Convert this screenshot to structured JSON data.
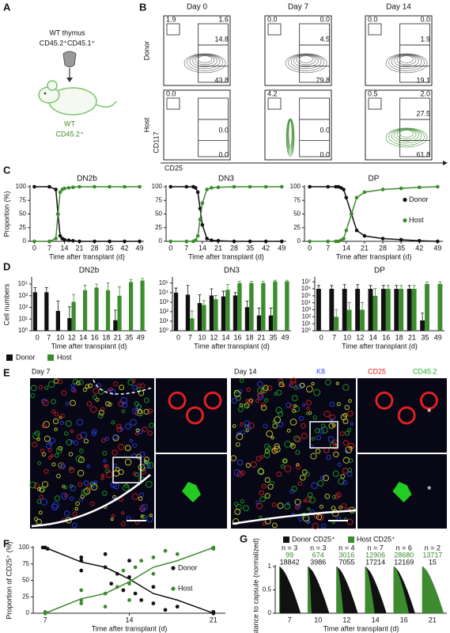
{
  "panel_a": {
    "letter": "A",
    "donor_lines": [
      "WT thymus",
      "CD45.2⁺CD45.1⁺"
    ],
    "recipient_lines": [
      "WT",
      "CD45.2⁺"
    ]
  },
  "panel_b": {
    "letter": "B",
    "columns": [
      "Day 0",
      "Day 7",
      "Day 14"
    ],
    "rows": [
      "Donor",
      "Host"
    ],
    "y_label": "CD117",
    "x_label": "CD25",
    "gates": [
      [
        [
          "1.9",
          "1.6",
          "14.8",
          "43.8"
        ],
        [
          "0.0",
          "0.0",
          "4.5",
          "79.8"
        ],
        [
          "0.0",
          "0.0",
          "1.9",
          "19.1"
        ]
      ],
      [
        [
          "0.0",
          "0.0",
          "0.0"
        ],
        [
          "4.2",
          "0.0",
          "0.0"
        ],
        [
          "0.5",
          "2.0",
          "27.5",
          "61.8"
        ]
      ]
    ]
  },
  "panel_e": {
    "letter": "E",
    "left_title": "Day 7",
    "right_title": "Day 14",
    "channels": [
      {
        "text": "K8",
        "color": "#3344ee"
      },
      {
        "text": "CD25",
        "color": "#e02020"
      },
      {
        "text": "CD45.2",
        "color": "#22aa22"
      }
    ],
    "marks": [
      "*",
      "*"
    ]
  },
  "chart_data": [
    {
      "type": "line",
      "panel": "C",
      "title": "DN2b",
      "y_label": "Proportion (%)",
      "x_label": "Time after transplant (d)",
      "xlim": [
        -2,
        51
      ],
      "xticks": [
        0,
        7,
        14,
        21,
        28,
        35,
        42,
        49
      ],
      "ylim": [
        0,
        100
      ],
      "yticks": [
        0,
        25,
        50,
        75,
        100
      ],
      "x": [
        0,
        7,
        10,
        11,
        12,
        13,
        14,
        16,
        18,
        21,
        28,
        35,
        42,
        49
      ],
      "series": [
        {
          "color": "#111111",
          "values": [
            100,
            100,
            95,
            50,
            10,
            5,
            3,
            2,
            1,
            0,
            0,
            0,
            0,
            0
          ]
        },
        {
          "color": "#3d8b2f",
          "values": [
            0,
            0,
            5,
            50,
            90,
            95,
            97,
            98,
            99,
            100,
            100,
            100,
            100,
            100
          ]
        }
      ]
    },
    {
      "type": "line",
      "title": "DN3",
      "x_label": "Time after transplant (d)",
      "xlim": [
        -2,
        51
      ],
      "xticks": [
        0,
        7,
        14,
        21,
        28,
        35,
        42,
        49
      ],
      "ylim": [
        0,
        100
      ],
      "yticks": [
        0,
        25,
        50,
        75,
        100
      ],
      "x": [
        0,
        7,
        10,
        11,
        12,
        13,
        14,
        16,
        18,
        21,
        28,
        35,
        42,
        49
      ],
      "series": [
        {
          "color": "#111111",
          "values": [
            100,
            100,
            100,
            98,
            90,
            60,
            30,
            5,
            2,
            1,
            0,
            0,
            0,
            0
          ]
        },
        {
          "color": "#3d8b2f",
          "values": [
            0,
            0,
            0,
            2,
            10,
            40,
            70,
            95,
            98,
            99,
            100,
            100,
            100,
            100
          ]
        }
      ]
    },
    {
      "type": "line",
      "title": "DP",
      "x_label": "Time after transplant (d)",
      "legend": "right",
      "xlim": [
        -2,
        51
      ],
      "xticks": [
        0,
        7,
        14,
        21,
        28,
        35,
        42,
        49
      ],
      "ylim": [
        0,
        100
      ],
      "yticks": [
        0,
        25,
        50,
        75,
        100
      ],
      "x": [
        0,
        7,
        10,
        11,
        12,
        13,
        14,
        16,
        18,
        21,
        28,
        35,
        42,
        49
      ],
      "series": [
        {
          "name": "Donor",
          "color": "#111111",
          "values": [
            100,
            100,
            100,
            100,
            98,
            95,
            80,
            50,
            20,
            10,
            5,
            3,
            1,
            0
          ]
        },
        {
          "name": "Host",
          "color": "#3d8b2f",
          "values": [
            0,
            0,
            0,
            0,
            2,
            5,
            20,
            50,
            80,
            90,
            95,
            97,
            99,
            100
          ]
        }
      ]
    },
    {
      "type": "bar",
      "panel": "D",
      "title": "DN2b",
      "y_label": "Cell numbers",
      "x_label": "Time after transplant (d)",
      "log": true,
      "legend": "bottom",
      "ylim": [
        1,
        30000
      ],
      "yticks": [
        {
          "value": 1,
          "label": "10⁰"
        },
        {
          "value": 10,
          "label": "10¹"
        },
        {
          "value": 100,
          "label": "10²"
        },
        {
          "value": 1000,
          "label": "10³"
        },
        {
          "value": 10000,
          "label": "10⁴"
        }
      ],
      "categories": [
        "0",
        "7",
        "10",
        "12",
        "14",
        "16",
        "18",
        "21",
        "35",
        "49"
      ],
      "series": [
        {
          "name": "Donor",
          "color": "#111111",
          "values": [
            2000,
            2000,
            50,
            12,
            null,
            null,
            null,
            8,
            null,
            null
          ],
          "errors": [
            3000,
            3000,
            300,
            100,
            null,
            null,
            null,
            50,
            null,
            null
          ]
        },
        {
          "name": "Host",
          "color": "#3d8b2f",
          "values": [
            null,
            null,
            null,
            300,
            3000,
            5000,
            3000,
            1000,
            15000,
            20000
          ],
          "errors": [
            null,
            null,
            null,
            1000,
            5000,
            5000,
            10000,
            5000,
            10000,
            10000
          ]
        }
      ]
    },
    {
      "type": "bar",
      "title": "DN3",
      "x_label": "Time after transplant (d)",
      "log": true,
      "ylim": [
        1,
        300000
      ],
      "yticks": [
        {
          "value": 1,
          "label": "10⁰"
        },
        {
          "value": 10,
          "label": "10¹"
        },
        {
          "value": 100,
          "label": "10²"
        },
        {
          "value": 1000,
          "label": "10³"
        },
        {
          "value": 10000,
          "label": "10⁴"
        },
        {
          "value": 100000,
          "label": "10⁵"
        }
      ],
      "categories": [
        "0",
        "7",
        "10",
        "12",
        "14",
        "16",
        "18",
        "21",
        "35",
        "49"
      ],
      "series": [
        {
          "color": "#111111",
          "values": [
            10000,
            6000,
            800,
            5000,
            4000,
            5000,
            300,
            40,
            40,
            null
          ],
          "errors": [
            20000,
            50000,
            5000,
            20000,
            10000,
            5000,
            1000,
            200,
            200,
            null
          ]
        },
        {
          "color": "#3d8b2f",
          "values": [
            null,
            20,
            500,
            2000,
            20000,
            100000,
            100000,
            100000,
            150000,
            150000
          ],
          "errors": [
            null,
            100,
            1000,
            3000,
            50000,
            50000,
            50000,
            50000,
            50000,
            50000
          ]
        }
      ]
    },
    {
      "type": "bar",
      "title": "DP",
      "x_label": "Time after transplant (d)",
      "log": true,
      "ylim": [
        1,
        30000000
      ],
      "yticks": [
        {
          "value": 1,
          "label": "10⁰"
        },
        {
          "value": 10,
          "label": "10¹"
        },
        {
          "value": 100,
          "label": "10²"
        },
        {
          "value": 1000,
          "label": "10³"
        },
        {
          "value": 10000,
          "label": "10⁴"
        },
        {
          "value": 100000,
          "label": "10⁵"
        },
        {
          "value": 1000000,
          "label": "10⁶"
        },
        {
          "value": 10000000,
          "label": "10⁷"
        }
      ],
      "categories": [
        "0",
        "7",
        "10",
        "12",
        "14",
        "16",
        "18",
        "21",
        "35",
        "49"
      ],
      "series": [
        {
          "color": "#111111",
          "values": [
            1000000,
            1000000,
            1000000,
            1000000,
            1000000,
            1000000,
            1000000,
            1000000,
            30,
            null
          ],
          "errors": [
            2000000,
            2000000,
            3000000,
            3000000,
            2000000,
            2000000,
            2000000,
            2000000,
            300,
            null
          ]
        },
        {
          "color": "#3d8b2f",
          "values": [
            null,
            100,
            1000,
            1000,
            100000,
            1000000,
            1000000,
            1000000,
            5000000,
            5000000
          ],
          "errors": [
            null,
            1000,
            10000,
            10000,
            1000000,
            2000000,
            2000000,
            2000000,
            5000000,
            5000000
          ]
        }
      ]
    },
    {
      "type": "scatter",
      "panel": "F",
      "y_label": "Proportion of CD25⁺ (%)",
      "x_label": "Time after transplant (d)",
      "legend": "right",
      "xlim": [
        6,
        22
      ],
      "xticks": [
        7,
        14,
        21
      ],
      "ylim": [
        0,
        100
      ],
      "yticks": [
        0,
        25,
        50,
        75,
        100
      ],
      "trend_x": [
        7,
        10,
        12,
        14,
        16,
        18,
        21
      ],
      "series": [
        {
          "name": "Donor",
          "color": "#111111",
          "x": [
            6.8,
            7.2,
            7,
            10,
            10,
            10,
            12,
            12,
            12.5,
            13,
            13.5,
            14,
            14,
            14.5,
            15,
            16,
            16,
            17,
            18,
            21,
            21
          ],
          "values": [
            100,
            98,
            100,
            85,
            80,
            65,
            90,
            70,
            45,
            60,
            35,
            80,
            55,
            30,
            20,
            40,
            15,
            5,
            10,
            0,
            2
          ],
          "trend": [
            100,
            78,
            70,
            52,
            30,
            20,
            0
          ]
        },
        {
          "name": "Host",
          "color": "#3d8b2f",
          "x": [
            7,
            7,
            10,
            10,
            10,
            12,
            12,
            13,
            13.5,
            14,
            14,
            14.5,
            15,
            16,
            16,
            17,
            18,
            21,
            21
          ],
          "values": [
            0,
            2,
            15,
            20,
            35,
            10,
            30,
            40,
            65,
            20,
            45,
            70,
            80,
            60,
            85,
            95,
            90,
            100,
            98
          ],
          "trend": [
            0,
            22,
            30,
            48,
            70,
            80,
            100
          ]
        }
      ]
    },
    {
      "type": "density",
      "panel": "G",
      "y_label": "Distance to capsule (normalized)",
      "x_label": "Time after transplant (d)",
      "legend": "top",
      "ylim": [
        0,
        1
      ],
      "yticks": [
        0,
        0.5,
        1
      ],
      "categories": [
        "7",
        "10",
        "12",
        "14",
        "16",
        "21"
      ],
      "n_labels": [
        "n = 3",
        "n = 3",
        "n = 4",
        "n = 7",
        "n = 6",
        "n = 2"
      ],
      "series": [
        {
          "name": "Donor CD25⁺",
          "color": "#111111",
          "values": [
            18842,
            3986,
            7055,
            17214,
            12169,
            15
          ]
        },
        {
          "name": "Host CD25⁺",
          "color": "#3d8b2f",
          "values": [
            99,
            674,
            3016,
            12906,
            28680,
            13717
          ]
        }
      ]
    }
  ]
}
